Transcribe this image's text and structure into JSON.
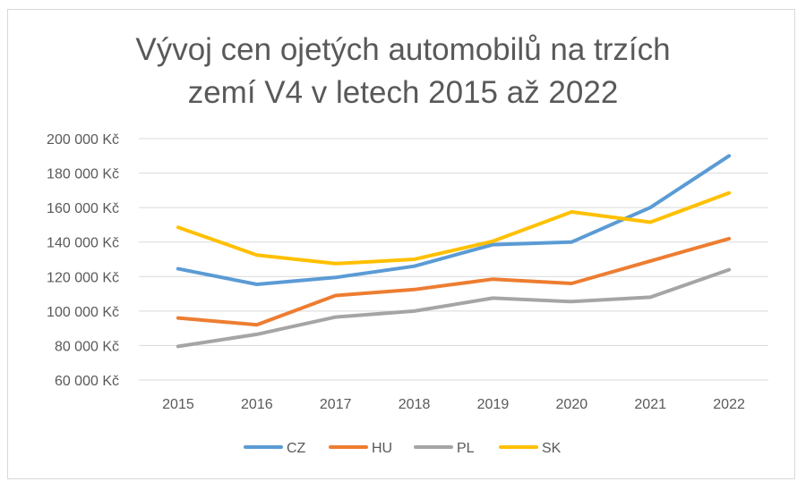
{
  "chart_data": {
    "type": "line",
    "title_line1": "Vývoj cen ojetých automobilů na trzích",
    "title_line2": "zemí V4 v letech 2015 až 2022",
    "categories": [
      "2015",
      "2016",
      "2017",
      "2018",
      "2019",
      "2020",
      "2021",
      "2022"
    ],
    "y_tick_labels": [
      "60 000 Kč",
      "80 000 Kč",
      "100 000 Kč",
      "120 000 Kč",
      "140 000 Kč",
      "160 000 Kč",
      "180 000 Kč",
      "200 000 Kč"
    ],
    "ylim": [
      60000,
      200000
    ],
    "y_step": 20000,
    "grid": true,
    "legend_position": "bottom",
    "series": [
      {
        "name": "CZ",
        "color": "#5B9BD5",
        "values": [
          124500,
          115500,
          119500,
          126000,
          138500,
          140000,
          160000,
          190000
        ]
      },
      {
        "name": "HU",
        "color": "#ED7D31",
        "values": [
          96000,
          92000,
          109000,
          112500,
          118500,
          116000,
          129000,
          142000
        ]
      },
      {
        "name": "PL",
        "color": "#A5A5A5",
        "values": [
          79500,
          86500,
          96500,
          100000,
          107500,
          105500,
          108000,
          124000
        ]
      },
      {
        "name": "SK",
        "color": "#FFC000",
        "values": [
          148500,
          132500,
          127500,
          130000,
          140500,
          157500,
          151500,
          168500
        ]
      }
    ]
  }
}
